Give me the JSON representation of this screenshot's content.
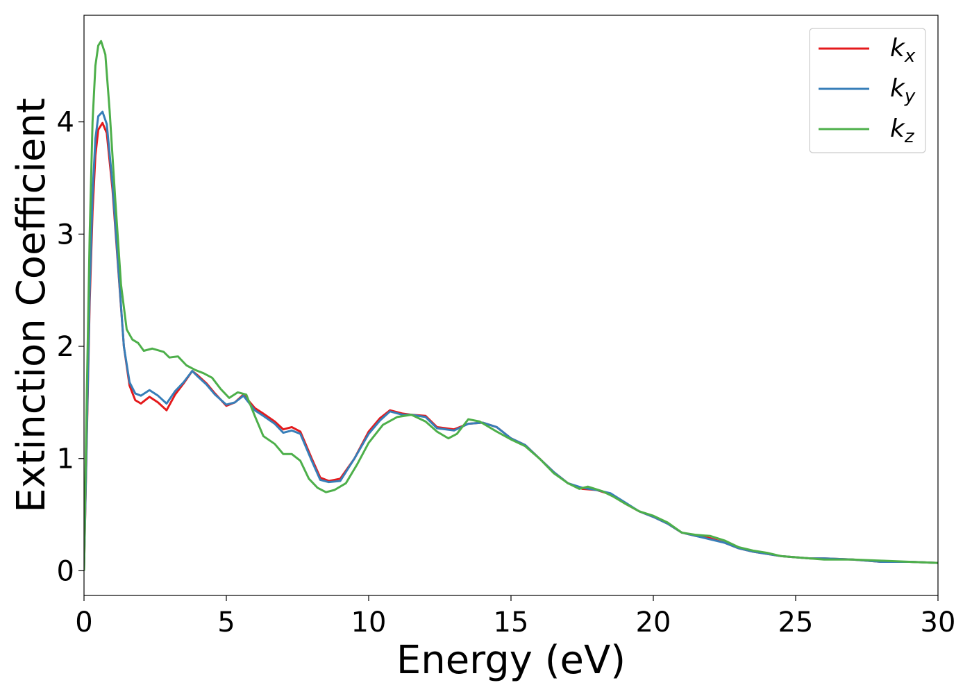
{
  "chart_data": {
    "type": "line",
    "title": "",
    "xlabel": "Energy (eV)",
    "ylabel": "Extinction Coefficient",
    "xlim": [
      0,
      30
    ],
    "ylim": [
      -0.22,
      4.95
    ],
    "xticks": [
      0,
      5,
      10,
      15,
      20,
      25,
      30
    ],
    "yticks": [
      0,
      1,
      2,
      3,
      4
    ],
    "grid": false,
    "legend_position": "top-right",
    "series": [
      {
        "name": "k",
        "subscript": "x",
        "color": "#e41a1c",
        "points": [
          [
            0,
            0
          ],
          [
            0.1,
            1.2
          ],
          [
            0.2,
            2.4
          ],
          [
            0.3,
            3.2
          ],
          [
            0.4,
            3.7
          ],
          [
            0.5,
            3.93
          ],
          [
            0.65,
            3.99
          ],
          [
            0.8,
            3.9
          ],
          [
            1.0,
            3.4
          ],
          [
            1.2,
            2.7
          ],
          [
            1.4,
            2.0
          ],
          [
            1.6,
            1.65
          ],
          [
            1.8,
            1.52
          ],
          [
            2.0,
            1.49
          ],
          [
            2.3,
            1.55
          ],
          [
            2.6,
            1.5
          ],
          [
            2.9,
            1.43
          ],
          [
            3.2,
            1.57
          ],
          [
            3.5,
            1.67
          ],
          [
            3.8,
            1.78
          ],
          [
            4.0,
            1.74
          ],
          [
            4.3,
            1.67
          ],
          [
            4.6,
            1.58
          ],
          [
            5.0,
            1.47
          ],
          [
            5.3,
            1.5
          ],
          [
            5.6,
            1.57
          ],
          [
            6.0,
            1.45
          ],
          [
            6.3,
            1.4
          ],
          [
            6.7,
            1.33
          ],
          [
            7.0,
            1.26
          ],
          [
            7.3,
            1.28
          ],
          [
            7.6,
            1.24
          ],
          [
            8.0,
            1.0
          ],
          [
            8.3,
            0.83
          ],
          [
            8.6,
            0.8
          ],
          [
            9.0,
            0.82
          ],
          [
            9.5,
            1.0
          ],
          [
            10.0,
            1.24
          ],
          [
            10.4,
            1.36
          ],
          [
            10.75,
            1.43
          ],
          [
            11.2,
            1.4
          ],
          [
            11.5,
            1.39
          ],
          [
            12.0,
            1.38
          ],
          [
            12.4,
            1.28
          ],
          [
            13.0,
            1.26
          ],
          [
            13.5,
            1.31
          ],
          [
            14.0,
            1.32
          ],
          [
            14.5,
            1.28
          ],
          [
            15.0,
            1.18
          ],
          [
            15.5,
            1.12
          ],
          [
            16.0,
            1.0
          ],
          [
            16.5,
            0.88
          ],
          [
            17.0,
            0.78
          ],
          [
            17.5,
            0.73
          ],
          [
            18.0,
            0.72
          ],
          [
            18.5,
            0.68
          ],
          [
            19.0,
            0.6
          ],
          [
            19.5,
            0.53
          ],
          [
            20.0,
            0.48
          ],
          [
            20.5,
            0.42
          ],
          [
            21.0,
            0.34
          ],
          [
            21.5,
            0.31
          ],
          [
            22.0,
            0.29
          ],
          [
            22.5,
            0.25
          ],
          [
            23.0,
            0.2
          ],
          [
            23.5,
            0.17
          ],
          [
            24.0,
            0.15
          ],
          [
            24.5,
            0.13
          ],
          [
            25.0,
            0.12
          ],
          [
            25.5,
            0.11
          ],
          [
            26.0,
            0.11
          ],
          [
            27.0,
            0.1
          ],
          [
            28.0,
            0.08
          ],
          [
            29.0,
            0.08
          ],
          [
            30.0,
            0.07
          ]
        ]
      },
      {
        "name": "k",
        "subscript": "y",
        "color": "#377eb8",
        "points": [
          [
            0,
            0
          ],
          [
            0.1,
            1.25
          ],
          [
            0.2,
            2.5
          ],
          [
            0.3,
            3.35
          ],
          [
            0.4,
            3.85
          ],
          [
            0.5,
            4.05
          ],
          [
            0.65,
            4.09
          ],
          [
            0.8,
            3.98
          ],
          [
            1.0,
            3.45
          ],
          [
            1.2,
            2.72
          ],
          [
            1.4,
            2.0
          ],
          [
            1.6,
            1.68
          ],
          [
            1.8,
            1.58
          ],
          [
            2.0,
            1.56
          ],
          [
            2.3,
            1.61
          ],
          [
            2.6,
            1.56
          ],
          [
            2.9,
            1.49
          ],
          [
            3.2,
            1.6
          ],
          [
            3.5,
            1.68
          ],
          [
            3.8,
            1.78
          ],
          [
            4.0,
            1.73
          ],
          [
            4.3,
            1.66
          ],
          [
            4.6,
            1.57
          ],
          [
            5.0,
            1.48
          ],
          [
            5.3,
            1.5
          ],
          [
            5.6,
            1.56
          ],
          [
            6.0,
            1.43
          ],
          [
            6.3,
            1.38
          ],
          [
            6.7,
            1.31
          ],
          [
            7.0,
            1.23
          ],
          [
            7.3,
            1.25
          ],
          [
            7.6,
            1.22
          ],
          [
            8.0,
            0.98
          ],
          [
            8.3,
            0.81
          ],
          [
            8.6,
            0.79
          ],
          [
            9.0,
            0.8
          ],
          [
            9.5,
            1.0
          ],
          [
            10.0,
            1.22
          ],
          [
            10.4,
            1.34
          ],
          [
            10.75,
            1.42
          ],
          [
            11.2,
            1.39
          ],
          [
            11.5,
            1.39
          ],
          [
            12.0,
            1.37
          ],
          [
            12.4,
            1.27
          ],
          [
            13.0,
            1.25
          ],
          [
            13.5,
            1.31
          ],
          [
            14.0,
            1.32
          ],
          [
            14.5,
            1.28
          ],
          [
            15.0,
            1.18
          ],
          [
            15.5,
            1.12
          ],
          [
            16.0,
            1.0
          ],
          [
            16.5,
            0.88
          ],
          [
            17.0,
            0.78
          ],
          [
            17.5,
            0.74
          ],
          [
            18.0,
            0.72
          ],
          [
            18.5,
            0.69
          ],
          [
            19.0,
            0.61
          ],
          [
            19.5,
            0.53
          ],
          [
            20.0,
            0.48
          ],
          [
            20.5,
            0.42
          ],
          [
            21.0,
            0.34
          ],
          [
            21.5,
            0.31
          ],
          [
            22.0,
            0.28
          ],
          [
            22.5,
            0.25
          ],
          [
            23.0,
            0.2
          ],
          [
            23.5,
            0.17
          ],
          [
            24.0,
            0.15
          ],
          [
            24.5,
            0.13
          ],
          [
            25.0,
            0.12
          ],
          [
            25.5,
            0.11
          ],
          [
            26.0,
            0.11
          ],
          [
            27.0,
            0.1
          ],
          [
            28.0,
            0.08
          ],
          [
            29.0,
            0.08
          ],
          [
            30.0,
            0.07
          ]
        ]
      },
      {
        "name": "k",
        "subscript": "z",
        "color": "#4daf4a",
        "points": [
          [
            0,
            0
          ],
          [
            0.1,
            1.6
          ],
          [
            0.2,
            3.0
          ],
          [
            0.3,
            4.0
          ],
          [
            0.4,
            4.5
          ],
          [
            0.5,
            4.68
          ],
          [
            0.6,
            4.72
          ],
          [
            0.75,
            4.6
          ],
          [
            0.9,
            4.1
          ],
          [
            1.1,
            3.3
          ],
          [
            1.3,
            2.55
          ],
          [
            1.5,
            2.15
          ],
          [
            1.7,
            2.06
          ],
          [
            1.9,
            2.03
          ],
          [
            2.1,
            1.96
          ],
          [
            2.4,
            1.98
          ],
          [
            2.8,
            1.95
          ],
          [
            3.0,
            1.9
          ],
          [
            3.3,
            1.91
          ],
          [
            3.6,
            1.83
          ],
          [
            3.9,
            1.79
          ],
          [
            4.2,
            1.76
          ],
          [
            4.5,
            1.72
          ],
          [
            4.8,
            1.62
          ],
          [
            5.1,
            1.54
          ],
          [
            5.4,
            1.59
          ],
          [
            5.7,
            1.57
          ],
          [
            6.0,
            1.38
          ],
          [
            6.3,
            1.2
          ],
          [
            6.7,
            1.13
          ],
          [
            7.0,
            1.04
          ],
          [
            7.3,
            1.04
          ],
          [
            7.6,
            0.98
          ],
          [
            7.9,
            0.82
          ],
          [
            8.2,
            0.74
          ],
          [
            8.5,
            0.7
          ],
          [
            8.8,
            0.72
          ],
          [
            9.2,
            0.78
          ],
          [
            9.6,
            0.95
          ],
          [
            10.0,
            1.14
          ],
          [
            10.5,
            1.3
          ],
          [
            11.0,
            1.37
          ],
          [
            11.5,
            1.39
          ],
          [
            12.0,
            1.33
          ],
          [
            12.4,
            1.24
          ],
          [
            12.8,
            1.18
          ],
          [
            13.1,
            1.22
          ],
          [
            13.5,
            1.35
          ],
          [
            13.9,
            1.33
          ],
          [
            14.5,
            1.24
          ],
          [
            15.0,
            1.17
          ],
          [
            15.5,
            1.11
          ],
          [
            16.0,
            1.0
          ],
          [
            16.5,
            0.87
          ],
          [
            17.0,
            0.78
          ],
          [
            17.4,
            0.73
          ],
          [
            17.7,
            0.75
          ],
          [
            18.2,
            0.71
          ],
          [
            18.6,
            0.66
          ],
          [
            19.0,
            0.6
          ],
          [
            19.5,
            0.53
          ],
          [
            20.0,
            0.49
          ],
          [
            20.5,
            0.43
          ],
          [
            21.0,
            0.34
          ],
          [
            21.5,
            0.32
          ],
          [
            22.0,
            0.31
          ],
          [
            22.5,
            0.27
          ],
          [
            23.0,
            0.21
          ],
          [
            23.5,
            0.18
          ],
          [
            24.0,
            0.16
          ],
          [
            24.5,
            0.13
          ],
          [
            25.0,
            0.12
          ],
          [
            25.5,
            0.11
          ],
          [
            26.0,
            0.1
          ],
          [
            27.0,
            0.1
          ],
          [
            28.0,
            0.09
          ],
          [
            29.0,
            0.08
          ],
          [
            30.0,
            0.07
          ]
        ]
      }
    ]
  }
}
